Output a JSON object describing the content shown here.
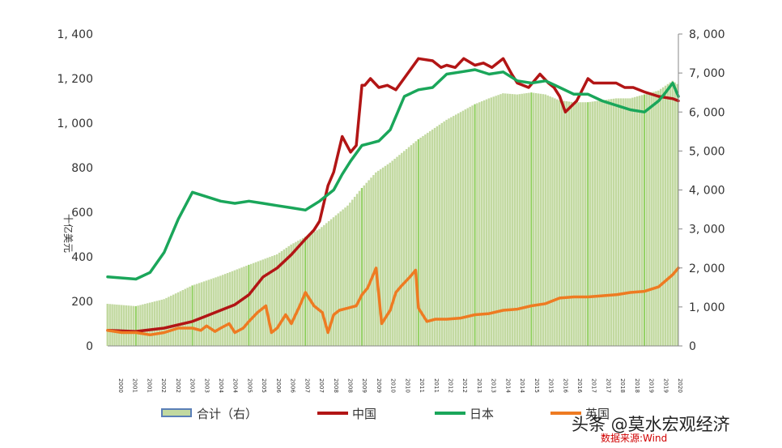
{
  "chart_data": {
    "type": "line",
    "title": "",
    "ylabel": "十亿美元",
    "ylim": [
      0,
      1400
    ],
    "y2lim": [
      0,
      8000
    ],
    "y_ticks": [
      "0",
      "200",
      "400",
      "600",
      "800",
      "1, 000",
      "1, 200",
      "1, 400"
    ],
    "y2_ticks": [
      "0",
      "1, 000",
      "2, 000",
      "3, 000",
      "4, 000",
      "5, 000",
      "6, 000",
      "7, 000",
      "8, 000"
    ],
    "x_tick_labels": [
      "2000",
      "2001",
      "2001",
      "2002",
      "2002",
      "2003",
      "2003",
      "2004",
      "2004",
      "2005",
      "2005",
      "2006",
      "2006",
      "2007",
      "2007",
      "2008",
      "2008",
      "2009",
      "2009",
      "2010",
      "2010",
      "2011",
      "2011",
      "2012",
      "2012",
      "2013",
      "2013",
      "2014",
      "2014",
      "2015",
      "2015",
      "2016",
      "2016",
      "2017",
      "2017",
      "2018",
      "2018",
      "2019",
      "2019",
      "2020"
    ],
    "x_range": [
      2000.0,
      2020.2
    ],
    "grid": false,
    "legend_position": "bottom",
    "series": [
      {
        "name": "合计（右）",
        "axis": "right",
        "kind": "area",
        "color": "#c2d9a0",
        "x": [
          2000.0,
          2001.0,
          2002.0,
          2003.0,
          2004.0,
          2005.0,
          2006.0,
          2006.5,
          2007.0,
          2007.5,
          2008.0,
          2008.5,
          2009.0,
          2009.5,
          2010.0,
          2010.5,
          2011.0,
          2011.5,
          2012.0,
          2012.5,
          2013.0,
          2013.5,
          2014.0,
          2014.5,
          2015.0,
          2015.5,
          2016.0,
          2016.5,
          2017.0,
          2017.5,
          2018.0,
          2018.5,
          2019.0,
          2019.5,
          2020.0,
          2020.2
        ],
        "values": [
          1080,
          1020,
          1200,
          1550,
          1800,
          2080,
          2350,
          2600,
          2800,
          3000,
          3300,
          3600,
          4050,
          4450,
          4700,
          5000,
          5300,
          5550,
          5800,
          6000,
          6200,
          6350,
          6480,
          6450,
          6500,
          6450,
          6300,
          6250,
          6250,
          6300,
          6350,
          6350,
          6450,
          6550,
          6800,
          6700
        ]
      },
      {
        "name": "中国",
        "axis": "left",
        "color": "#b21515",
        "x": [
          2000.0,
          2001.0,
          2002.0,
          2003.0,
          2004.0,
          2004.5,
          2005.0,
          2005.5,
          2006.0,
          2006.5,
          2007.0,
          2007.3,
          2007.5,
          2007.8,
          2008.0,
          2008.3,
          2008.6,
          2008.8,
          2009.0,
          2009.1,
          2009.3,
          2009.6,
          2009.9,
          2010.2,
          2010.6,
          2011.0,
          2011.5,
          2011.8,
          2012.0,
          2012.3,
          2012.6,
          2013.0,
          2013.3,
          2013.6,
          2014.0,
          2014.3,
          2014.5,
          2014.9,
          2015.3,
          2015.6,
          2015.8,
          2016.0,
          2016.2,
          2016.6,
          2017.0,
          2017.2,
          2017.6,
          2018.0,
          2018.3,
          2018.6,
          2019.0,
          2019.5,
          2020.0,
          2020.2
        ],
        "values": [
          70,
          65,
          80,
          110,
          160,
          185,
          230,
          310,
          350,
          410,
          480,
          520,
          560,
          720,
          780,
          940,
          870,
          900,
          1170,
          1170,
          1200,
          1160,
          1170,
          1150,
          1220,
          1290,
          1280,
          1250,
          1260,
          1250,
          1290,
          1260,
          1270,
          1250,
          1290,
          1220,
          1180,
          1160,
          1220,
          1180,
          1160,
          1120,
          1050,
          1100,
          1200,
          1180,
          1180,
          1180,
          1160,
          1160,
          1140,
          1120,
          1110,
          1100
        ]
      },
      {
        "name": "日本",
        "axis": "left",
        "color": "#1aa65a",
        "x": [
          2000.0,
          2001.0,
          2001.5,
          2002.0,
          2002.5,
          2003.0,
          2003.5,
          2004.0,
          2004.5,
          2005.0,
          2005.5,
          2006.0,
          2006.5,
          2007.0,
          2007.5,
          2008.0,
          2008.3,
          2008.6,
          2009.0,
          2009.3,
          2009.6,
          2010.0,
          2010.5,
          2011.0,
          2011.5,
          2012.0,
          2012.5,
          2013.0,
          2013.5,
          2014.0,
          2014.5,
          2015.0,
          2015.5,
          2016.0,
          2016.5,
          2017.0,
          2017.5,
          2018.0,
          2018.5,
          2019.0,
          2019.5,
          2019.7,
          2020.0,
          2020.2
        ],
        "values": [
          310,
          300,
          330,
          420,
          570,
          690,
          670,
          650,
          640,
          650,
          640,
          630,
          620,
          610,
          650,
          700,
          770,
          830,
          900,
          910,
          920,
          970,
          1120,
          1150,
          1160,
          1220,
          1230,
          1240,
          1220,
          1230,
          1190,
          1180,
          1190,
          1160,
          1130,
          1130,
          1100,
          1080,
          1060,
          1050,
          1100,
          1130,
          1180,
          1120
        ]
      },
      {
        "name": "英国",
        "axis": "left",
        "color": "#ee7b22",
        "x": [
          2000.0,
          2000.5,
          2001.0,
          2001.5,
          2002.0,
          2002.5,
          2003.0,
          2003.3,
          2003.5,
          2003.8,
          2004.0,
          2004.3,
          2004.5,
          2004.8,
          2005.0,
          2005.3,
          2005.6,
          2005.8,
          2006.0,
          2006.3,
          2006.5,
          2006.8,
          2007.0,
          2007.3,
          2007.6,
          2007.8,
          2008.0,
          2008.2,
          2008.5,
          2008.8,
          2009.0,
          2009.2,
          2009.5,
          2009.7,
          2010.0,
          2010.2,
          2010.4,
          2010.7,
          2010.9,
          2011.0,
          2011.3,
          2011.6,
          2012.0,
          2012.5,
          2013.0,
          2013.5,
          2014.0,
          2014.5,
          2015.0,
          2015.5,
          2016.0,
          2016.5,
          2017.0,
          2017.5,
          2018.0,
          2018.5,
          2019.0,
          2019.5,
          2020.0,
          2020.2
        ],
        "values": [
          70,
          60,
          60,
          50,
          60,
          80,
          80,
          70,
          90,
          65,
          80,
          100,
          60,
          80,
          110,
          150,
          180,
          60,
          80,
          140,
          100,
          180,
          240,
          180,
          150,
          60,
          140,
          160,
          170,
          180,
          230,
          260,
          350,
          100,
          160,
          240,
          270,
          310,
          340,
          170,
          110,
          120,
          120,
          125,
          140,
          145,
          160,
          165,
          180,
          190,
          215,
          220,
          220,
          225,
          230,
          240,
          245,
          265,
          320,
          350
        ]
      }
    ],
    "watermark": "头条 @莫水宏观经济",
    "source_label": "数据来源:Wind"
  }
}
